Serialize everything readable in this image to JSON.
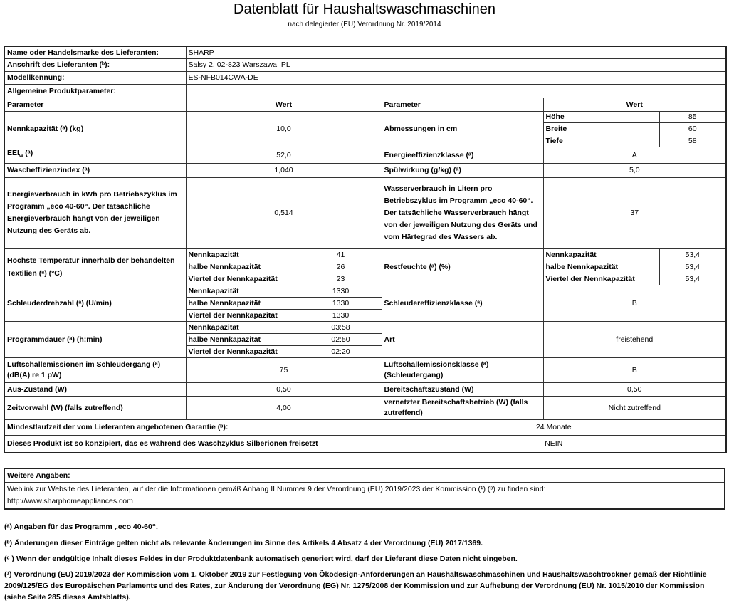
{
  "title": "Datenblatt für Haushaltswaschmaschinen",
  "subtitle": "nach delegierter (EU) Verordnung Nr. 2019/2014",
  "supplier": {
    "label": "Name oder Handelsmarke des Lieferanten:",
    "value": "SHARP"
  },
  "address": {
    "label": "Anschrift des Lieferanten (ᵇ):",
    "value": "Salsy 2, 02-823 Warszawa, PL"
  },
  "model": {
    "label": "Modellkennung:",
    "value": "ES-NFB014CWA-DE"
  },
  "general": {
    "label": "Allgemeine Produktparameter:"
  },
  "header": {
    "param": "Parameter",
    "value": "Wert"
  },
  "capacity": {
    "label": "Nennkapazität (ᵃ) (kg)",
    "value": "10,0"
  },
  "dimensions": {
    "label": "Abmessungen in cm",
    "rows": [
      {
        "k": "Höhe",
        "v": "85"
      },
      {
        "k": "Breite",
        "v": "60"
      },
      {
        "k": "Tiefe",
        "v": "58"
      }
    ]
  },
  "eei": {
    "main": "EEI",
    "sub": "w",
    "rest": " (ᵃ)",
    "value": "52,0"
  },
  "energy_class": {
    "label": "Energieeffizienzklasse (ᵃ)",
    "value": "A"
  },
  "wash_index": {
    "label": "Wascheffizienzindex (ᵃ)",
    "value": "1,040"
  },
  "rinse": {
    "label": "Spülwirkung (g/kg) (ᵃ)",
    "value": "5,0"
  },
  "energy": {
    "label": "Energieverbrauch in kWh pro Betriebszyklus im Programm „eco 40-60“. Der tatsächliche Energieverbrauch hängt von der jeweiligen Nutzung des Geräts ab.",
    "value": "0,514"
  },
  "water": {
    "label": "Wasserverbrauch in Litern pro Betriebszyklus im Programm „eco 40-60“. Der tatsächliche Wasserverbrauch hängt von der jeweiligen Nutzung des Geräts und vom Härtegrad des Wassers ab.",
    "value": "37"
  },
  "temp": {
    "label": "Höchste Temperatur innerhalb der behandelten Textilien (ᵃ) (°C)",
    "rows": [
      {
        "k": "Nennkapazität",
        "v": "41"
      },
      {
        "k": "halbe Nennkapazität",
        "v": "26"
      },
      {
        "k": "Viertel der Nennkapazität",
        "v": "23"
      }
    ]
  },
  "moisture": {
    "label": "Restfeuchte (ᵃ) (%)",
    "rows": [
      {
        "k": "Nennkapazität",
        "v": "53,4"
      },
      {
        "k": "halbe Nennkapazität",
        "v": "53,4"
      },
      {
        "k": "Viertel der Nennkapazität",
        "v": "53,4"
      }
    ]
  },
  "spin": {
    "label": "Schleuderdrehzahl (ᵃ) (U/min)",
    "rows": [
      {
        "k": "Nennkapazität",
        "v": "1330"
      },
      {
        "k": "halbe Nennkapazität",
        "v": "1330"
      },
      {
        "k": "Viertel der Nennkapazität",
        "v": "1330"
      }
    ]
  },
  "spin_class": {
    "label": "Schleudereffizienzklasse (ᵃ)",
    "value": "B"
  },
  "duration": {
    "label": "Programmdauer (ᵃ) (h:min)",
    "rows": [
      {
        "k": "Nennkapazität",
        "v": "03:58"
      },
      {
        "k": "halbe Nennkapazität",
        "v": "02:50"
      },
      {
        "k": "Viertel der Nennkapazität",
        "v": "02:20"
      }
    ]
  },
  "type": {
    "label": "Art",
    "value": "freistehend"
  },
  "noise": {
    "label": "Luftschallemissionen im Schleudergang (ᵃ) (dB(A) re 1 pW)",
    "value": "75"
  },
  "noise_class": {
    "label": "Luftschallemissionsklasse (ᵃ) (Schleudergang)",
    "value": "B"
  },
  "off": {
    "label": "Aus-Zustand (W)",
    "value": "0,50"
  },
  "standby": {
    "label": "Bereitschaftszustand (W)",
    "value": "0,50"
  },
  "delay": {
    "label": "Zeitvorwahl (W) (falls zutreffend)",
    "value": "4,00"
  },
  "networked": {
    "label": "vernetzter Bereitschaftsbetrieb (W) (falls zutreffend)",
    "value": "Nicht zutreffend"
  },
  "warranty": {
    "label": "Mindestlaufzeit der vom Lieferanten angebotenen Garantie (ᵇ):",
    "value": "24 Monate"
  },
  "silver": {
    "label": "Dieses Produkt ist so konzipiert, das es während des Waschzyklus Silberionen freisetzt",
    "value": "NEIN"
  },
  "further": {
    "label": "Weitere Angaben:",
    "text": "Weblink zur Website des Lieferanten, auf der die Informationen gemäß Anhang II Nummer 9 der Verordnung (EU) 2019/2023 der Kommission (¹) (ᵇ) zu finden sind:",
    "link": "http://www.sharphomeappliances.com"
  },
  "footnotes": [
    "(ᵃ) Angaben für das Programm „eco 40-60“.",
    "(ᵇ) Änderungen dieser Einträge gelten nicht als relevante Änderungen im Sinne des Artikels 4 Absatz 4 der Verordnung (EU) 2017/1369.",
    "(ᶜ ) Wenn der endgültige Inhalt dieses Feldes in der Produktdatenbank automatisch generiert wird, darf der Lieferant diese Daten nicht eingeben.",
    "(¹) Verordnung (EU) 2019/2023 der Kommission vom 1. Oktober 2019 zur Festlegung von Ökodesign-Anforderungen an Haushaltswaschmaschinen und Haushaltswaschtrockner gemäß der Richtlinie 2009/125/EG des Europäischen Parlaments und des Rates, zur Änderung der Verordnung (EG) Nr. 1275/2008 der Kommission und zur Aufhebung der Verordnung (EU) Nr. 1015/2010 der Kommission (siehe Seite 285 dieses Amtsblatts)."
  ]
}
